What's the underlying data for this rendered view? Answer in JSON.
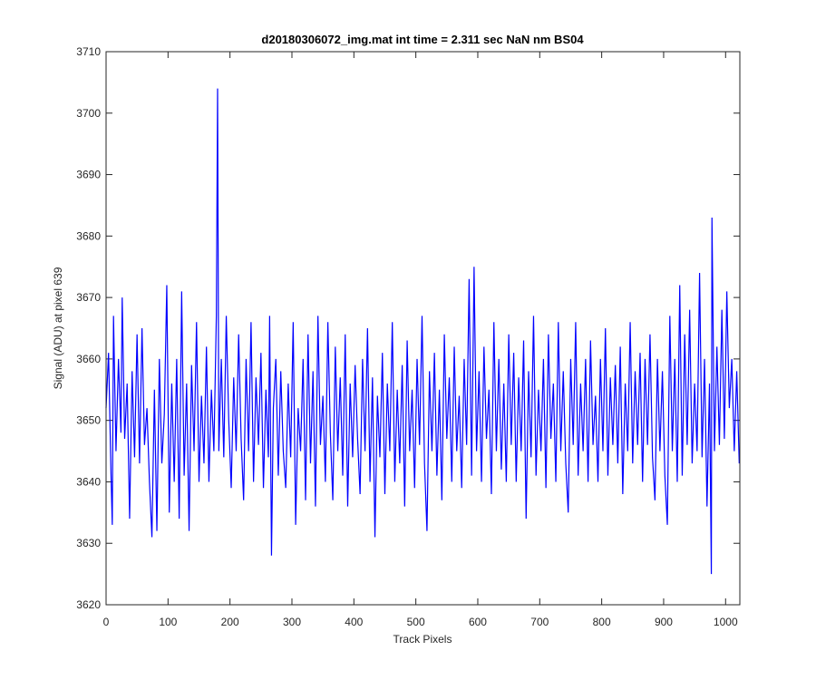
{
  "chart_data": {
    "type": "line",
    "title": "d20180306072_img.mat int time = 2.311 sec  NaN nm BS04",
    "xlabel": "Track Pixels",
    "ylabel": "Signal (ADU) at pixel 639",
    "color": "#0000ff",
    "xlim": [
      0,
      1023
    ],
    "ylim": [
      3620,
      3710
    ],
    "xticks": [
      0,
      100,
      200,
      300,
      400,
      500,
      600,
      700,
      800,
      900,
      1000
    ],
    "yticks": [
      3620,
      3630,
      3640,
      3650,
      3660,
      3670,
      3680,
      3690,
      3700,
      3710
    ],
    "grid": false,
    "x": [
      0,
      4,
      8,
      10,
      12,
      16,
      20,
      24,
      26,
      30,
      34,
      38,
      42,
      46,
      50,
      54,
      58,
      62,
      66,
      70,
      74,
      78,
      82,
      86,
      90,
      94,
      98,
      102,
      106,
      110,
      114,
      118,
      122,
      126,
      130,
      134,
      138,
      142,
      146,
      150,
      154,
      158,
      162,
      166,
      170,
      174,
      178,
      180,
      182,
      186,
      190,
      194,
      198,
      202,
      206,
      210,
      214,
      218,
      222,
      226,
      230,
      234,
      238,
      242,
      246,
      250,
      254,
      258,
      262,
      264,
      267,
      270,
      274,
      278,
      282,
      286,
      290,
      294,
      298,
      302,
      306,
      310,
      314,
      318,
      322,
      326,
      330,
      334,
      338,
      342,
      346,
      350,
      354,
      358,
      362,
      366,
      370,
      374,
      378,
      382,
      386,
      390,
      394,
      398,
      402,
      406,
      410,
      414,
      418,
      422,
      426,
      430,
      434,
      438,
      442,
      446,
      450,
      454,
      458,
      462,
      466,
      470,
      474,
      478,
      482,
      486,
      490,
      494,
      498,
      502,
      506,
      510,
      514,
      518,
      522,
      526,
      530,
      534,
      538,
      542,
      546,
      550,
      554,
      558,
      562,
      566,
      570,
      574,
      578,
      582,
      586,
      590,
      594,
      598,
      602,
      606,
      610,
      614,
      618,
      622,
      626,
      630,
      634,
      638,
      642,
      646,
      650,
      654,
      658,
      662,
      666,
      670,
      674,
      678,
      682,
      686,
      690,
      694,
      698,
      702,
      706,
      710,
      714,
      718,
      722,
      726,
      730,
      734,
      738,
      742,
      746,
      750,
      754,
      758,
      762,
      766,
      770,
      774,
      778,
      782,
      786,
      790,
      794,
      798,
      802,
      806,
      810,
      814,
      818,
      822,
      826,
      830,
      834,
      838,
      842,
      846,
      850,
      854,
      858,
      862,
      866,
      870,
      874,
      878,
      882,
      886,
      890,
      894,
      898,
      902,
      906,
      910,
      914,
      918,
      922,
      926,
      930,
      934,
      938,
      942,
      946,
      950,
      954,
      958,
      962,
      966,
      970,
      974,
      977,
      978,
      982,
      986,
      990,
      994,
      998,
      1002,
      1006,
      1010,
      1014,
      1018,
      1022
    ],
    "values": [
      3652,
      3661,
      3641,
      3633,
      3667,
      3645,
      3660,
      3648,
      3670,
      3647,
      3656,
      3634,
      3658,
      3644,
      3664,
      3643,
      3665,
      3646,
      3652,
      3640,
      3631,
      3655,
      3632,
      3660,
      3643,
      3651,
      3672,
      3635,
      3656,
      3640,
      3660,
      3634,
      3671,
      3641,
      3656,
      3632,
      3659,
      3645,
      3666,
      3640,
      3654,
      3643,
      3662,
      3640,
      3655,
      3645,
      3667,
      3704,
      3645,
      3660,
      3644,
      3667,
      3650,
      3639,
      3657,
      3645,
      3664,
      3647,
      3637,
      3660,
      3645,
      3666,
      3640,
      3657,
      3646,
      3661,
      3639,
      3655,
      3644,
      3667,
      3628,
      3652,
      3660,
      3641,
      3658,
      3645,
      3639,
      3656,
      3644,
      3666,
      3633,
      3652,
      3645,
      3660,
      3637,
      3664,
      3643,
      3658,
      3636,
      3667,
      3646,
      3654,
      3640,
      3666,
      3648,
      3637,
      3662,
      3645,
      3657,
      3641,
      3664,
      3636,
      3656,
      3644,
      3659,
      3647,
      3638,
      3660,
      3645,
      3665,
      3640,
      3657,
      3631,
      3654,
      3644,
      3661,
      3638,
      3656,
      3645,
      3666,
      3640,
      3655,
      3643,
      3659,
      3636,
      3663,
      3645,
      3655,
      3639,
      3660,
      3646,
      3667,
      3643,
      3632,
      3658,
      3645,
      3661,
      3641,
      3655,
      3637,
      3664,
      3647,
      3657,
      3640,
      3662,
      3645,
      3654,
      3639,
      3660,
      3646,
      3673,
      3641,
      3675,
      3645,
      3658,
      3640,
      3662,
      3647,
      3655,
      3638,
      3666,
      3645,
      3660,
      3642,
      3656,
      3640,
      3664,
      3646,
      3661,
      3640,
      3657,
      3645,
      3663,
      3634,
      3658,
      3644,
      3667,
      3641,
      3655,
      3645,
      3660,
      3639,
      3664,
      3647,
      3656,
      3640,
      3666,
      3645,
      3658,
      3643,
      3635,
      3660,
      3646,
      3666,
      3641,
      3656,
      3645,
      3660,
      3640,
      3663,
      3646,
      3654,
      3640,
      3660,
      3645,
      3665,
      3641,
      3657,
      3646,
      3659,
      3643,
      3662,
      3638,
      3656,
      3645,
      3666,
      3643,
      3658,
      3646,
      3661,
      3640,
      3660,
      3646,
      3664,
      3644,
      3637,
      3660,
      3645,
      3658,
      3641,
      3633,
      3667,
      3645,
      3660,
      3640,
      3672,
      3641,
      3664,
      3646,
      3668,
      3643,
      3656,
      3645,
      3674,
      3644,
      3660,
      3636,
      3656,
      3625,
      3683,
      3645,
      3662,
      3646,
      3668,
      3647,
      3671,
      3652,
      3660,
      3645,
      3658,
      3643
    ]
  }
}
